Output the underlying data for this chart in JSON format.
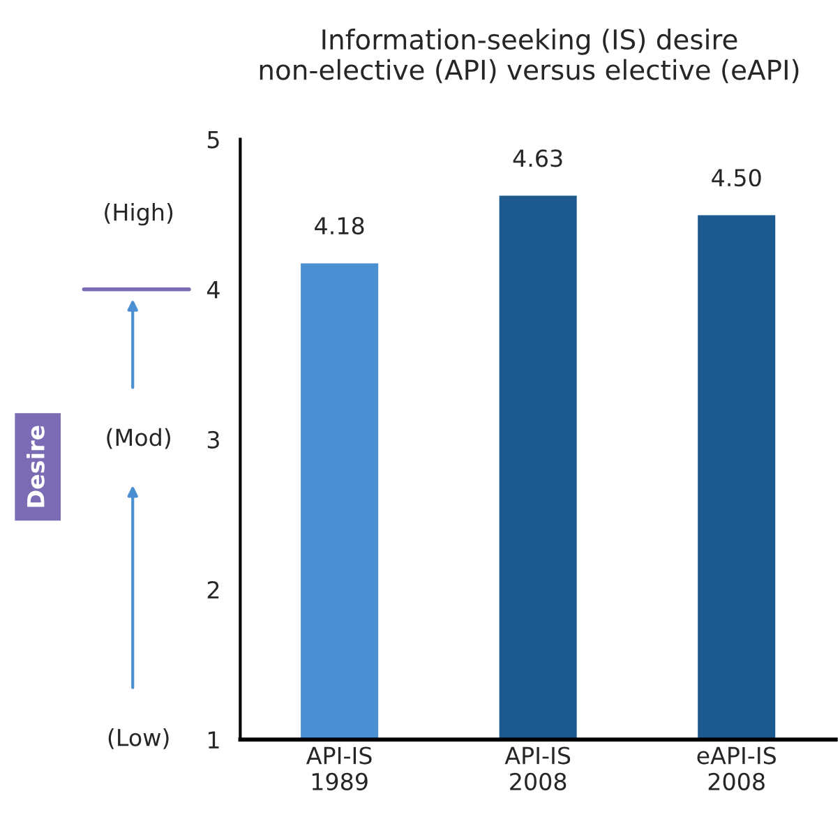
{
  "chart_data": {
    "type": "bar",
    "title": "Information-seeking (IS) desire\nnon-elective (API) versus elective (eAPI)",
    "categories": [
      "API-IS\n1989",
      "API-IS\n2008",
      "eAPI-IS\n2008"
    ],
    "values": [
      4.18,
      4.63,
      4.5
    ],
    "colors": [
      "#4a8fd2",
      "#1d5a8f",
      "#1d5a8f"
    ],
    "value_labels": [
      "4.18",
      "4.63",
      "4.50"
    ],
    "ylim": [
      1,
      5
    ],
    "yticks": [
      1,
      2,
      3,
      4,
      5
    ],
    "grid": false,
    "legend": false,
    "annotations": [
      "Desire",
      "(High)",
      "(Mod)",
      "(Low)"
    ]
  }
}
